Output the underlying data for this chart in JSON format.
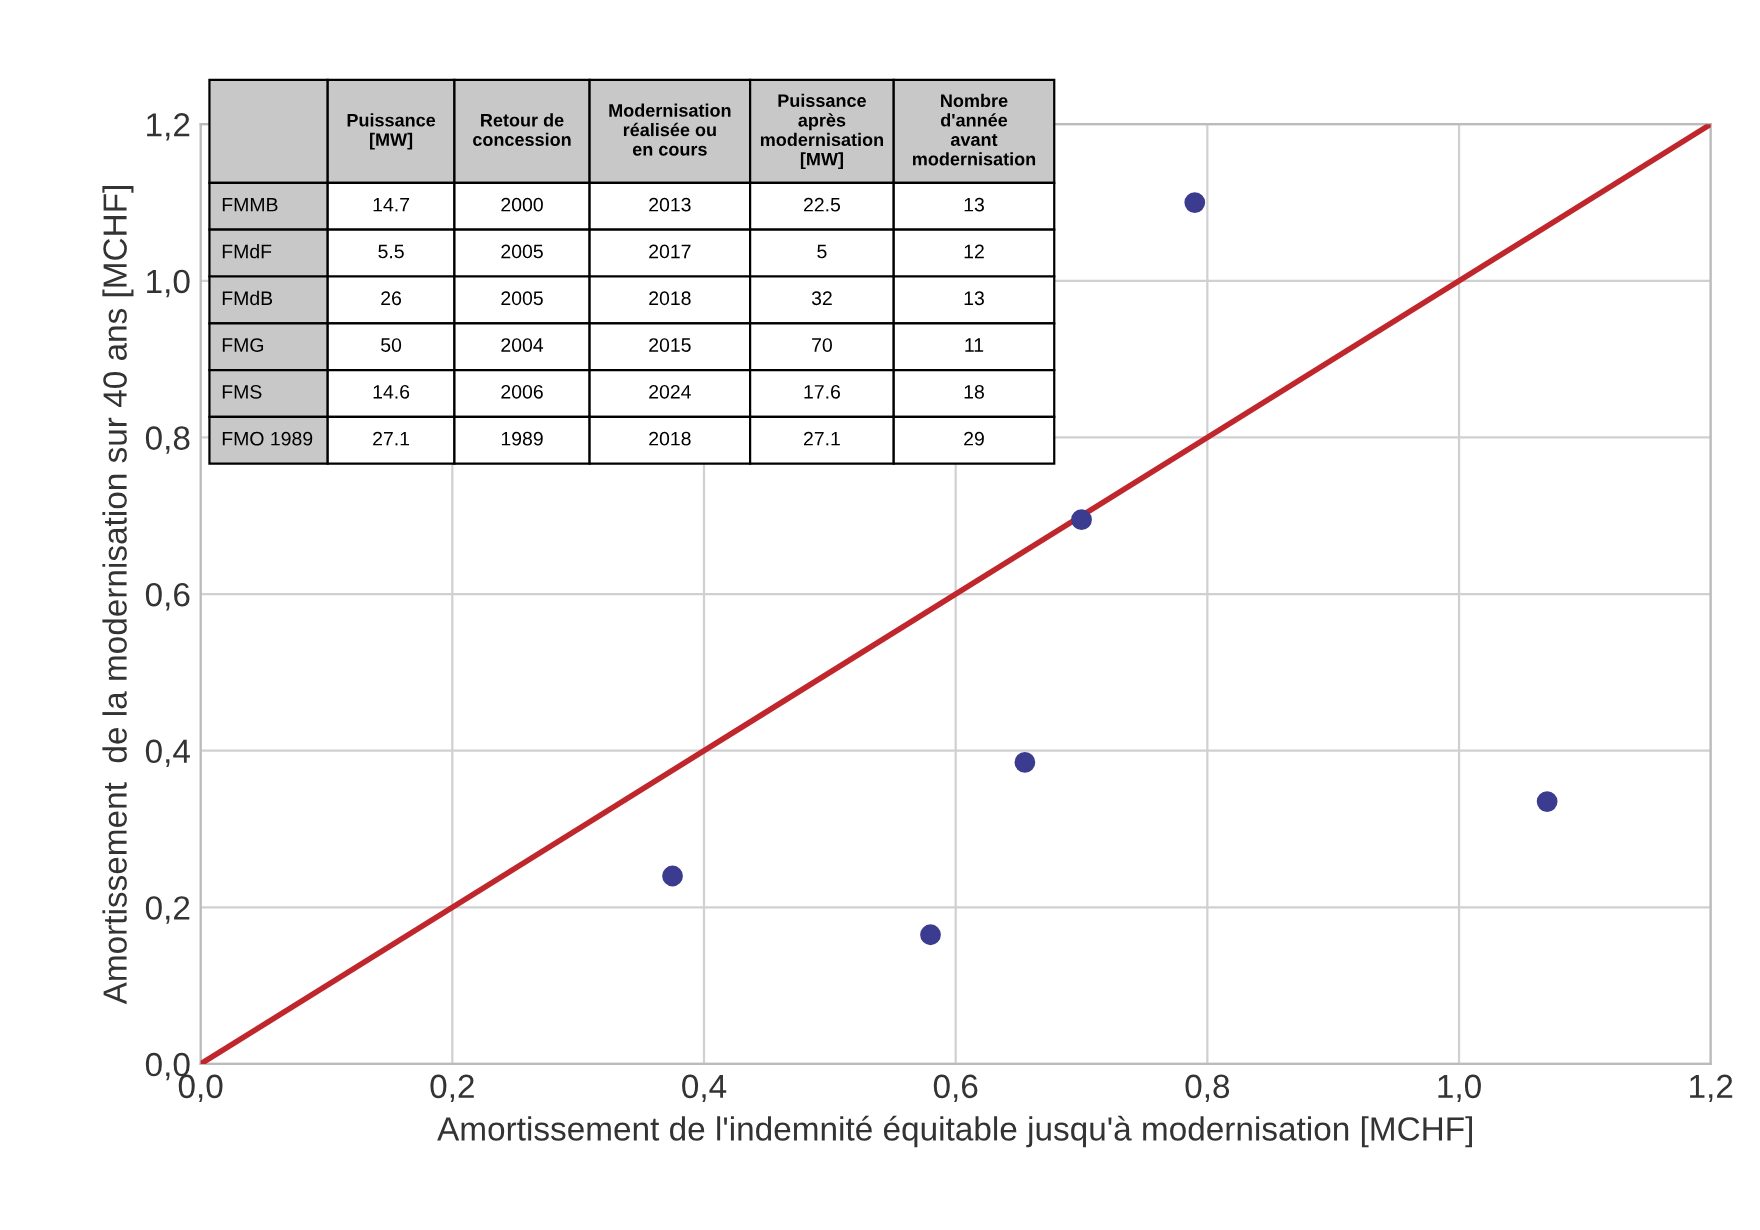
{
  "chart_data": [
    {
      "type": "scatter",
      "xlabel": "Amortissement de l'indemnité équitable jusqu'à modernisation [MCHF]",
      "ylabel": "Amortissement  de la modernisation sur 40 ans [MCHF]",
      "xlim": [
        0,
        1.2
      ],
      "ylim": [
        0,
        1.2
      ],
      "xticks": [
        {
          "value": 0,
          "label": "0,0"
        },
        {
          "value": 0.2,
          "label": "0,2"
        },
        {
          "value": 0.4,
          "label": "0,4"
        },
        {
          "value": 0.6,
          "label": "0,6"
        },
        {
          "value": 0.8,
          "label": "0,8"
        },
        {
          "value": 1.0,
          "label": "1,0"
        },
        {
          "value": 1.2,
          "label": "1,2"
        }
      ],
      "yticks": [
        {
          "value": 0,
          "label": "0,0"
        },
        {
          "value": 0.2,
          "label": "0,2"
        },
        {
          "value": 0.4,
          "label": "0,4"
        },
        {
          "value": 0.6,
          "label": "0,6"
        },
        {
          "value": 0.8,
          "label": "0,8"
        },
        {
          "value": 1.0,
          "label": "1,0"
        },
        {
          "value": 1.2,
          "label": "1,2"
        }
      ],
      "grid": true,
      "series": [
        {
          "type": "scatter",
          "color": "#3b3b8f",
          "x": [
            0.375,
            0.58,
            0.655,
            0.7,
            0.79,
            1.07
          ],
          "values": [
            0.24,
            0.165,
            0.385,
            0.695,
            1.1,
            0.335
          ]
        },
        {
          "type": "line",
          "color": "#c0272d",
          "x": [
            0,
            1.2
          ],
          "values": [
            0,
            1.2
          ]
        }
      ]
    },
    {
      "type": "other",
      "categories": [
        "Puissance [MW]",
        "Retour de concession",
        "Modernisation réalisée ou en cours",
        "Puissance après modernisation [MW]",
        "Nombre d'année avant modernisation"
      ],
      "y_categories": [
        "FMMB",
        "FMdF",
        "FMdB",
        "FMG",
        "FMS",
        "FMO 1989"
      ],
      "cell_labels": [
        [
          "14.7",
          "2000",
          "2013",
          "22.5",
          "13"
        ],
        [
          "5.5",
          "2005",
          "2017",
          "5",
          "12"
        ],
        [
          "26",
          "2005",
          "2018",
          "32",
          "13"
        ],
        [
          "50",
          "2004",
          "2015",
          "70",
          "11"
        ],
        [
          "14.6",
          "2006",
          "2024",
          "17.6",
          "18"
        ],
        [
          "27.1",
          "1989",
          "2018",
          "27.1",
          "29"
        ]
      ]
    }
  ]
}
